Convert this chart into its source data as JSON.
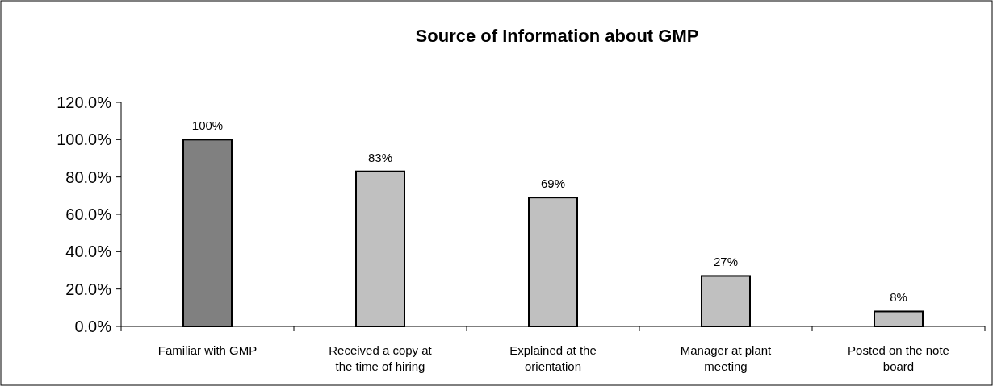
{
  "chart_data": {
    "type": "bar",
    "title": "Source of Information about GMP",
    "categories": [
      "Familiar with GMP",
      "Received a copy at the time of hiring",
      "Explained at the orientation",
      "Manager at plant meeting",
      "Posted on the note board"
    ],
    "values": [
      100,
      83,
      69,
      27,
      8
    ],
    "colors": [
      "#808080",
      "#c0c0c0",
      "#c0c0c0",
      "#c0c0c0",
      "#c0c0c0"
    ],
    "value_labels": [
      "100%",
      "83%",
      "69%",
      "27%",
      "8%"
    ],
    "ylim": [
      0,
      120
    ],
    "yticks": [
      {
        "value": 0,
        "label": "0.0%"
      },
      {
        "value": 20,
        "label": "20.0%"
      },
      {
        "value": 40,
        "label": "40.0%"
      },
      {
        "value": 60,
        "label": "60.0%"
      },
      {
        "value": 80,
        "label": "80.0%"
      },
      {
        "value": 100,
        "label": "100.0%"
      },
      {
        "value": 120,
        "label": "120.0%"
      }
    ],
    "grid": false
  }
}
